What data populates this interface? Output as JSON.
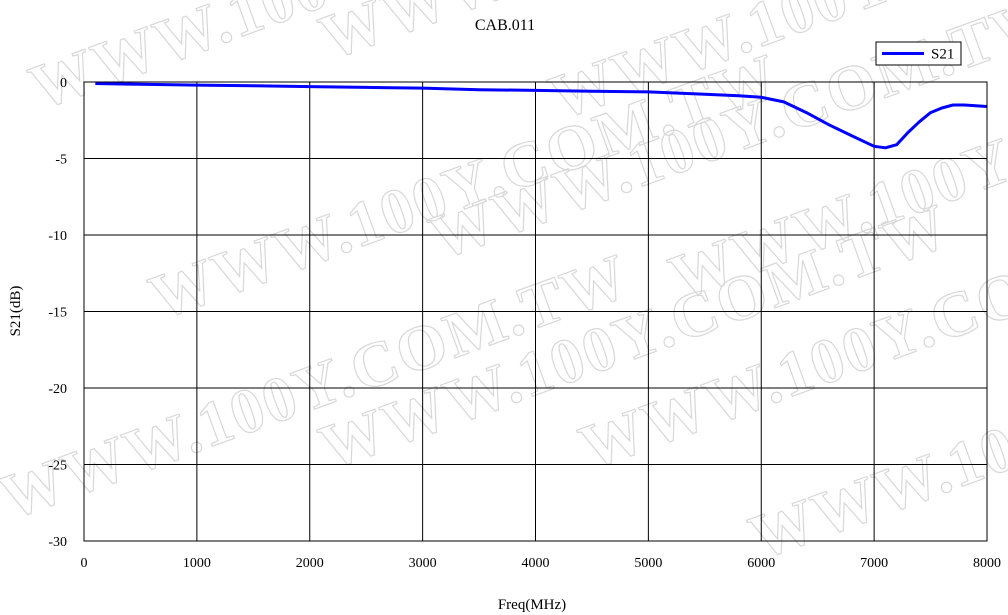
{
  "chart_data": {
    "type": "line",
    "title": "CAB.011",
    "xlabel": "Freq(MHz)",
    "ylabel": "S21(dB)",
    "xlim": [
      0,
      8000
    ],
    "ylim": [
      -30,
      0
    ],
    "x_ticks": [
      0,
      1000,
      2000,
      3000,
      4000,
      5000,
      6000,
      7000,
      8000
    ],
    "y_ticks": [
      0,
      -5,
      -10,
      -15,
      -20,
      -25,
      -30
    ],
    "grid": true,
    "legend": "top-right",
    "series": [
      {
        "name": "S21",
        "color": "#0000ff",
        "x": [
          100,
          500,
          1000,
          1500,
          2000,
          2500,
          3000,
          3500,
          4000,
          4500,
          5000,
          5500,
          5800,
          6000,
          6200,
          6400,
          6600,
          6800,
          7000,
          7100,
          7200,
          7300,
          7400,
          7500,
          7600,
          7700,
          7800,
          8000
        ],
        "y": [
          -0.1,
          -0.15,
          -0.2,
          -0.25,
          -0.3,
          -0.35,
          -0.4,
          -0.5,
          -0.55,
          -0.6,
          -0.65,
          -0.8,
          -0.9,
          -1.0,
          -1.3,
          -2.0,
          -2.8,
          -3.5,
          -4.2,
          -4.3,
          -4.1,
          -3.3,
          -2.6,
          -2.0,
          -1.7,
          -1.5,
          -1.5,
          -1.6
        ]
      }
    ]
  },
  "watermark_text": "WWW.100Y.COM.TW"
}
